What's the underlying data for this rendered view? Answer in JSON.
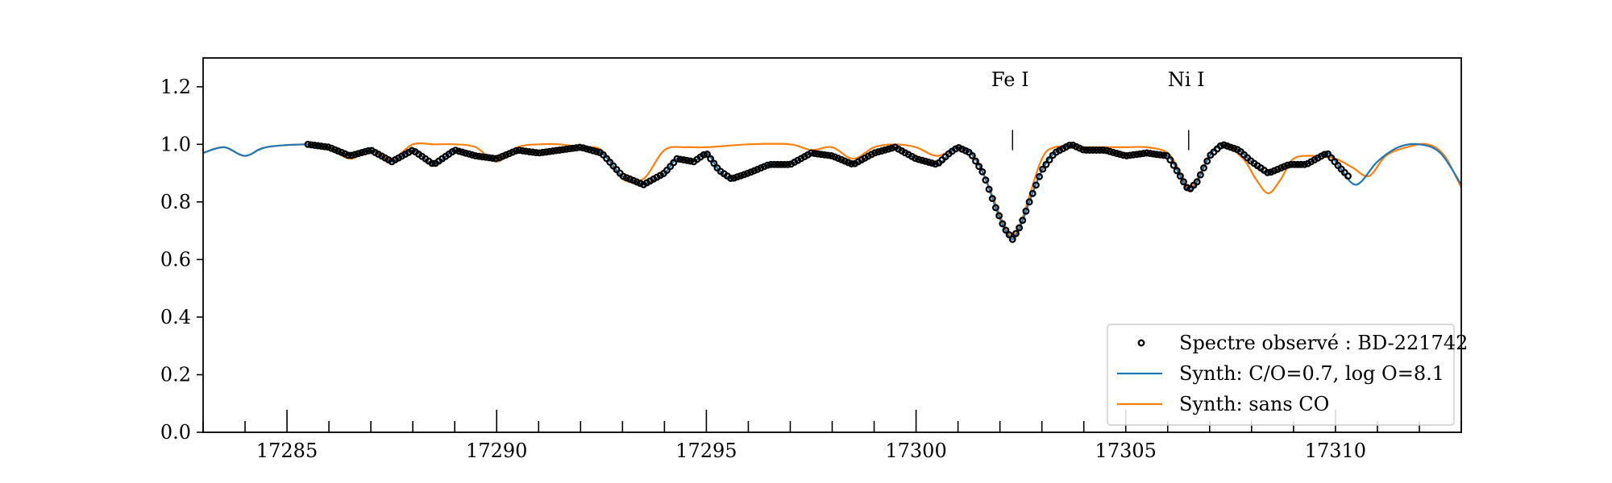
{
  "chart_data": {
    "type": "line",
    "title": "",
    "xlabel": "",
    "ylabel": "",
    "xlim": [
      17283,
      17313
    ],
    "ylim": [
      0.0,
      1.3
    ],
    "x_ticks": [
      17285,
      17290,
      17295,
      17300,
      17305,
      17310
    ],
    "x_minor_step": 1,
    "y_ticks": [
      0.0,
      0.2,
      0.4,
      0.6,
      0.8,
      1.0,
      1.2
    ],
    "grid": false,
    "legend_position": "lower-right",
    "annotations": [
      {
        "label": "Fe I",
        "x": 17302.3,
        "line_from": 0.98,
        "line_to": 1.05
      },
      {
        "label": "Ni I",
        "x": 17306.5,
        "line_from": 0.98,
        "line_to": 1.05
      }
    ],
    "series": [
      {
        "name": "Spectre observé : BD-221742",
        "style": "markers",
        "color": "#000000",
        "x_start": 17285.5,
        "x_step": 0.08,
        "x_end": 17310.3
      },
      {
        "name": "Synth: C/O=0.7, log O=8.1",
        "style": "line",
        "color": "#1f77b4",
        "points": [
          [
            17283.0,
            0.97
          ],
          [
            17283.5,
            0.99
          ],
          [
            17284.0,
            0.96
          ],
          [
            17284.5,
            0.99
          ],
          [
            17285.5,
            1.0
          ],
          [
            17286.0,
            0.99
          ],
          [
            17286.5,
            0.96
          ],
          [
            17287.0,
            0.98
          ],
          [
            17287.5,
            0.94
          ],
          [
            17288.0,
            0.98
          ],
          [
            17288.5,
            0.93
          ],
          [
            17289.0,
            0.98
          ],
          [
            17289.5,
            0.96
          ],
          [
            17290.0,
            0.95
          ],
          [
            17290.5,
            0.98
          ],
          [
            17291.0,
            0.97
          ],
          [
            17291.5,
            0.98
          ],
          [
            17292.0,
            0.99
          ],
          [
            17292.5,
            0.97
          ],
          [
            17293.0,
            0.89
          ],
          [
            17293.5,
            0.86
          ],
          [
            17294.0,
            0.9
          ],
          [
            17294.3,
            0.95
          ],
          [
            17294.7,
            0.94
          ],
          [
            17295.0,
            0.97
          ],
          [
            17295.3,
            0.91
          ],
          [
            17295.6,
            0.88
          ],
          [
            17296.0,
            0.9
          ],
          [
            17296.5,
            0.93
          ],
          [
            17297.0,
            0.93
          ],
          [
            17297.5,
            0.97
          ],
          [
            17298.0,
            0.96
          ],
          [
            17298.5,
            0.93
          ],
          [
            17299.0,
            0.97
          ],
          [
            17299.5,
            0.99
          ],
          [
            17300.0,
            0.95
          ],
          [
            17300.5,
            0.93
          ],
          [
            17300.8,
            0.97
          ],
          [
            17301.0,
            0.99
          ],
          [
            17301.3,
            0.97
          ],
          [
            17301.6,
            0.9
          ],
          [
            17301.9,
            0.78
          ],
          [
            17302.1,
            0.71
          ],
          [
            17302.3,
            0.67
          ],
          [
            17302.5,
            0.72
          ],
          [
            17302.7,
            0.8
          ],
          [
            17303.0,
            0.91
          ],
          [
            17303.3,
            0.97
          ],
          [
            17303.7,
            1.0
          ],
          [
            17304.0,
            0.98
          ],
          [
            17304.5,
            0.98
          ],
          [
            17305.0,
            0.96
          ],
          [
            17305.5,
            0.97
          ],
          [
            17306.0,
            0.96
          ],
          [
            17306.3,
            0.89
          ],
          [
            17306.5,
            0.84
          ],
          [
            17306.7,
            0.87
          ],
          [
            17307.0,
            0.96
          ],
          [
            17307.3,
            1.0
          ],
          [
            17307.7,
            0.98
          ],
          [
            17308.0,
            0.94
          ],
          [
            17308.4,
            0.9
          ],
          [
            17308.9,
            0.93
          ],
          [
            17309.3,
            0.93
          ],
          [
            17309.8,
            0.97
          ],
          [
            17310.1,
            0.92
          ],
          [
            17310.5,
            0.86
          ],
          [
            17311.0,
            0.94
          ],
          [
            17311.5,
            0.99
          ],
          [
            17312.0,
            1.0
          ],
          [
            17312.5,
            0.97
          ],
          [
            17313.0,
            0.86
          ]
        ]
      },
      {
        "name": "Synth: sans CO",
        "style": "line",
        "color": "#ff7f0e",
        "points": [
          [
            17283.0,
            0.97
          ],
          [
            17283.5,
            0.99
          ],
          [
            17284.0,
            0.96
          ],
          [
            17284.5,
            0.99
          ],
          [
            17285.5,
            1.0
          ],
          [
            17286.0,
            0.99
          ],
          [
            17286.5,
            0.95
          ],
          [
            17287.0,
            0.98
          ],
          [
            17287.5,
            0.95
          ],
          [
            17288.0,
            1.0
          ],
          [
            17288.5,
            1.0
          ],
          [
            17289.0,
            1.0
          ],
          [
            17289.5,
            0.99
          ],
          [
            17290.0,
            0.94
          ],
          [
            17290.5,
            0.99
          ],
          [
            17291.0,
            1.0
          ],
          [
            17291.5,
            1.0
          ],
          [
            17292.0,
            0.99
          ],
          [
            17292.5,
            0.98
          ],
          [
            17293.0,
            0.88
          ],
          [
            17293.5,
            0.88
          ],
          [
            17294.0,
            0.98
          ],
          [
            17294.5,
            0.99
          ],
          [
            17295.0,
            0.99
          ],
          [
            17296.0,
            1.0
          ],
          [
            17297.0,
            1.0
          ],
          [
            17297.5,
            0.98
          ],
          [
            17298.0,
            0.99
          ],
          [
            17298.5,
            0.95
          ],
          [
            17299.0,
            0.99
          ],
          [
            17299.5,
            1.0
          ],
          [
            17300.0,
            0.99
          ],
          [
            17300.5,
            0.96
          ],
          [
            17301.0,
            0.99
          ],
          [
            17301.3,
            0.97
          ],
          [
            17301.6,
            0.9
          ],
          [
            17301.9,
            0.79
          ],
          [
            17302.1,
            0.72
          ],
          [
            17302.3,
            0.68
          ],
          [
            17302.5,
            0.73
          ],
          [
            17302.7,
            0.82
          ],
          [
            17303.0,
            0.95
          ],
          [
            17303.3,
            0.99
          ],
          [
            17304.0,
            0.99
          ],
          [
            17305.0,
            0.99
          ],
          [
            17305.5,
            0.99
          ],
          [
            17306.0,
            0.97
          ],
          [
            17306.3,
            0.9
          ],
          [
            17306.5,
            0.85
          ],
          [
            17306.7,
            0.88
          ],
          [
            17307.0,
            0.96
          ],
          [
            17307.3,
            1.0
          ],
          [
            17307.8,
            0.95
          ],
          [
            17308.1,
            0.88
          ],
          [
            17308.4,
            0.83
          ],
          [
            17308.7,
            0.88
          ],
          [
            17309.0,
            0.95
          ],
          [
            17309.5,
            0.96
          ],
          [
            17310.0,
            0.95
          ],
          [
            17310.4,
            0.92
          ],
          [
            17310.8,
            0.89
          ],
          [
            17311.2,
            0.96
          ],
          [
            17311.7,
            0.99
          ],
          [
            17312.2,
            1.0
          ],
          [
            17312.6,
            0.96
          ],
          [
            17313.0,
            0.85
          ]
        ]
      }
    ]
  }
}
